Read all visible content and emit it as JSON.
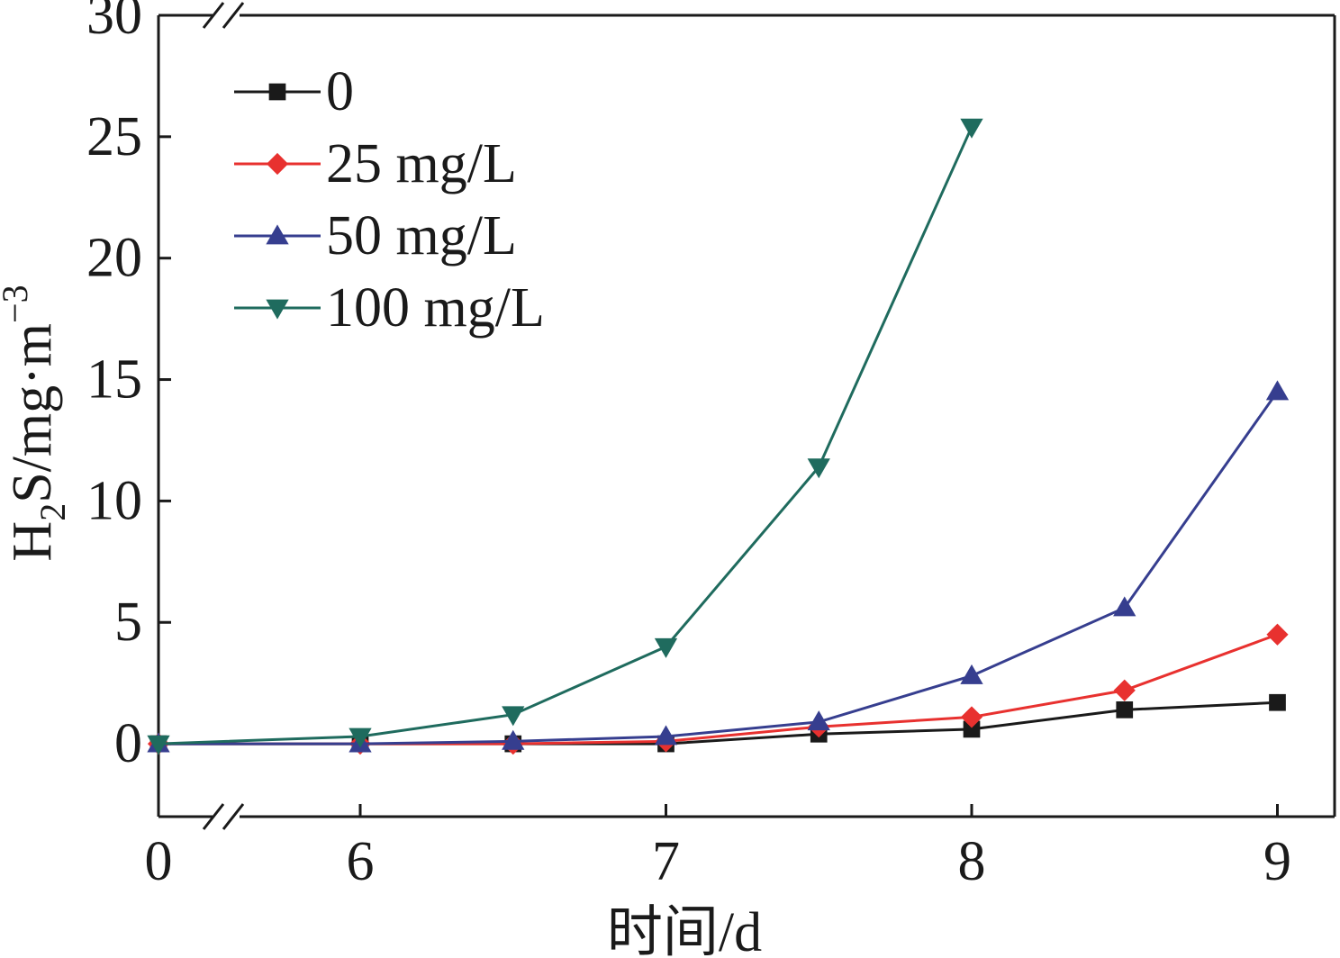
{
  "chart_data": {
    "type": "line",
    "xlabel": "时间/d",
    "ylabel": {
      "prefix": "H",
      "sub": "2",
      "mid": "S/mg·m",
      "sup": "−3"
    },
    "x_ticks": [
      "0",
      "6",
      "7",
      "8",
      "9"
    ],
    "y_ticks": [
      "0",
      "5",
      "10",
      "15",
      "20",
      "25",
      "30"
    ],
    "ylim": [
      -3,
      30
    ],
    "x_break": {
      "between": [
        "0",
        "6"
      ]
    },
    "grid": false,
    "legend_position": "top-left",
    "x": [
      "0",
      "6",
      "6.5",
      "7",
      "7.5",
      "8",
      "8.5",
      "9"
    ],
    "series": [
      {
        "name": "0",
        "color": "#1a1a1a",
        "marker": "square",
        "values": [
          0,
          0,
          0,
          0,
          0.4,
          0.6,
          1.4,
          1.7
        ]
      },
      {
        "name": "25 mg/L",
        "color": "#e8312f",
        "marker": "diamond",
        "values": [
          0,
          0,
          0,
          0.1,
          0.7,
          1.1,
          2.2,
          4.5
        ]
      },
      {
        "name": "50 mg/L",
        "color": "#363e8f",
        "marker": "triangle-up",
        "values": [
          0,
          0,
          0.1,
          0.3,
          0.9,
          2.8,
          5.6,
          14.5
        ]
      },
      {
        "name": "100 mg/L",
        "color": "#1f6b5e",
        "marker": "triangle-down",
        "values": [
          0,
          0.3,
          1.2,
          4.0,
          11.4,
          25.4,
          null,
          null
        ]
      }
    ]
  }
}
